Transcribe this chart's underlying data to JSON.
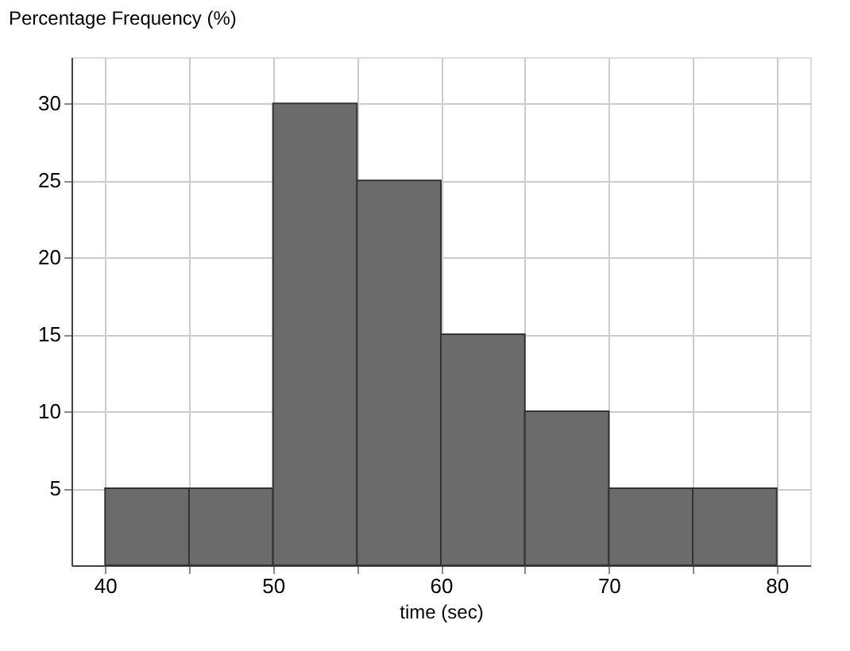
{
  "chart_data": {
    "type": "histogram",
    "xlabel": "time (sec)",
    "ylabel": "Percentage Frequency (%)",
    "bins": [
      40,
      45,
      50,
      55,
      60,
      65,
      70,
      75,
      80
    ],
    "values": [
      5,
      5,
      30,
      25,
      15,
      10,
      5,
      5
    ],
    "color": "#6b6b6b",
    "xlim": [
      38,
      82
    ],
    "ylim": [
      0,
      33
    ],
    "xticks": [
      40,
      {
        "value": 45,
        "label": null
      },
      50,
      {
        "value": 55,
        "label": null
      },
      60,
      {
        "value": 65,
        "label": null
      },
      70,
      {
        "value": 75,
        "label": null
      },
      80
    ],
    "yticks": [
      5,
      10,
      15,
      20,
      25,
      30
    ],
    "grid": true
  }
}
